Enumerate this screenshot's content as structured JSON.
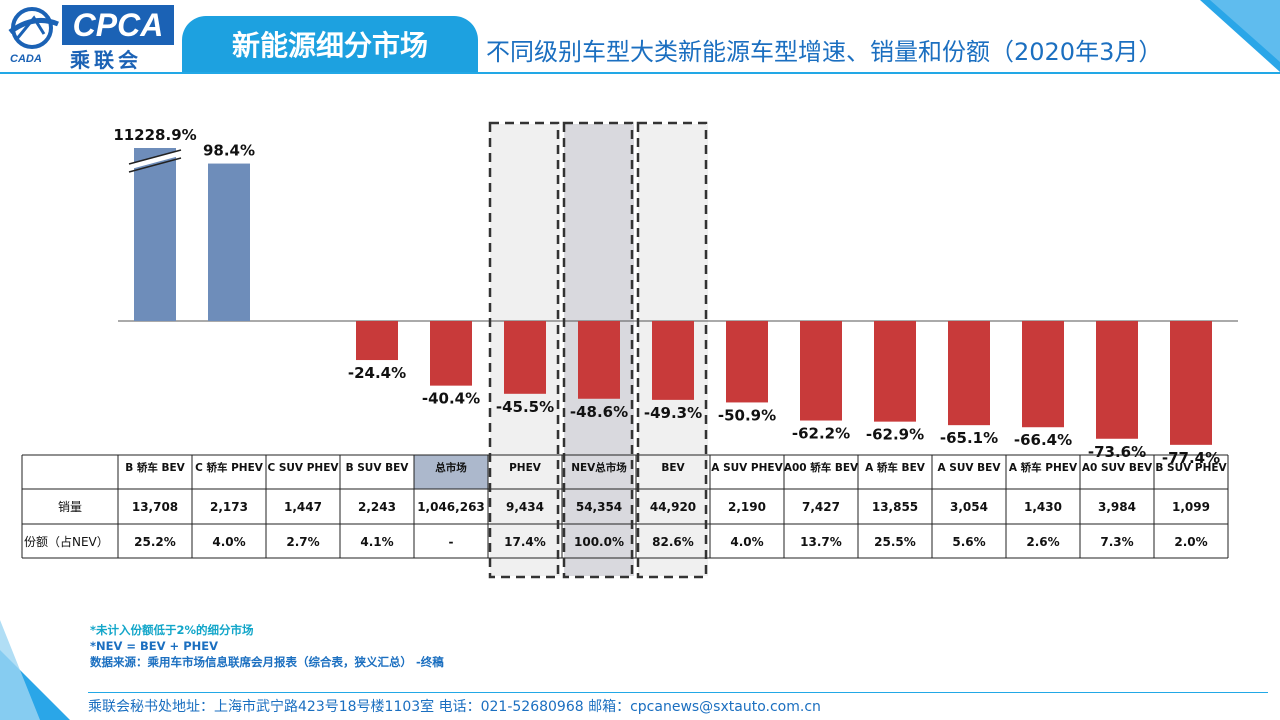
{
  "header": {
    "logo_text": "CPCA",
    "logo_cn": "乘联会",
    "logo_sub": "CADA",
    "section_title": "新能源细分市场",
    "page_title": "不同级别车型大类新能源车型增速、销量和份额（2020年3月）"
  },
  "colors": {
    "positive_bar": "#6e8dba",
    "negative_bar": "#c83a3a",
    "accent_blue": "#1da1e0",
    "header_cell_highlight": "#acb8cc",
    "phev_bev_highlight": "#f0f0f0",
    "nev_total_highlight": "#d9d9de"
  },
  "chart_data": {
    "type": "bar",
    "title": "",
    "xlabel": "",
    "ylabel": "",
    "axis_break_on": "B 轿车 BEV",
    "categories": [
      "B 轿车 BEV",
      "C 轿车 PHEV",
      "C SUV PHEV",
      "B SUV BEV",
      "总市场",
      "PHEV",
      "NEV总市场",
      "BEV",
      "A SUV PHEV",
      "A00 轿车 BEV",
      "A 轿车 BEV",
      "A SUV BEV",
      "A 轿车 PHEV",
      "A0 SUV BEV",
      "B SUV PHEV"
    ],
    "values": [
      11228.9,
      98.4,
      null,
      -24.4,
      -40.4,
      -45.5,
      -48.6,
      -49.3,
      -50.9,
      -62.2,
      -62.9,
      -65.1,
      -66.4,
      -73.6,
      -77.4
    ],
    "data_labels": [
      "11228.9%",
      "98.4%",
      "",
      "-24.4%",
      "-40.4%",
      "-45.5%",
      "-48.6%",
      "-49.3%",
      "-50.9%",
      "-62.2%",
      "-62.9%",
      "-65.1%",
      "-66.4%",
      "-73.6%",
      "-77.4%"
    ],
    "dashed_highlight": [
      "PHEV",
      "NEV总市场",
      "BEV"
    ],
    "table": {
      "row_labels": [
        "销量",
        "份额（占NEV）"
      ],
      "sales": [
        "13,708",
        "2,173",
        "1,447",
        "2,243",
        "1,046,263",
        "9,434",
        "54,354",
        "44,920",
        "2,190",
        "7,427",
        "13,855",
        "3,054",
        "1,430",
        "3,984",
        "1,099"
      ],
      "share": [
        "25.2%",
        "4.0%",
        "2.7%",
        "4.1%",
        "-",
        "17.4%",
        "100.0%",
        "82.6%",
        "4.0%",
        "13.7%",
        "25.5%",
        "5.6%",
        "2.6%",
        "7.3%",
        "2.0%"
      ]
    }
  },
  "notes": {
    "note1": "*未计入份额低于2%的细分市场",
    "note2": "*NEV = BEV + PHEV",
    "source": "数据来源：乘用车市场信息联席会月报表（综合表，狭义汇总） -终稿"
  },
  "footer": {
    "text": "乘联会秘书处地址：上海市武宁路423号18号楼1103室  电话：021-52680968   邮箱：cpcanews@sxtauto.com.cn"
  }
}
